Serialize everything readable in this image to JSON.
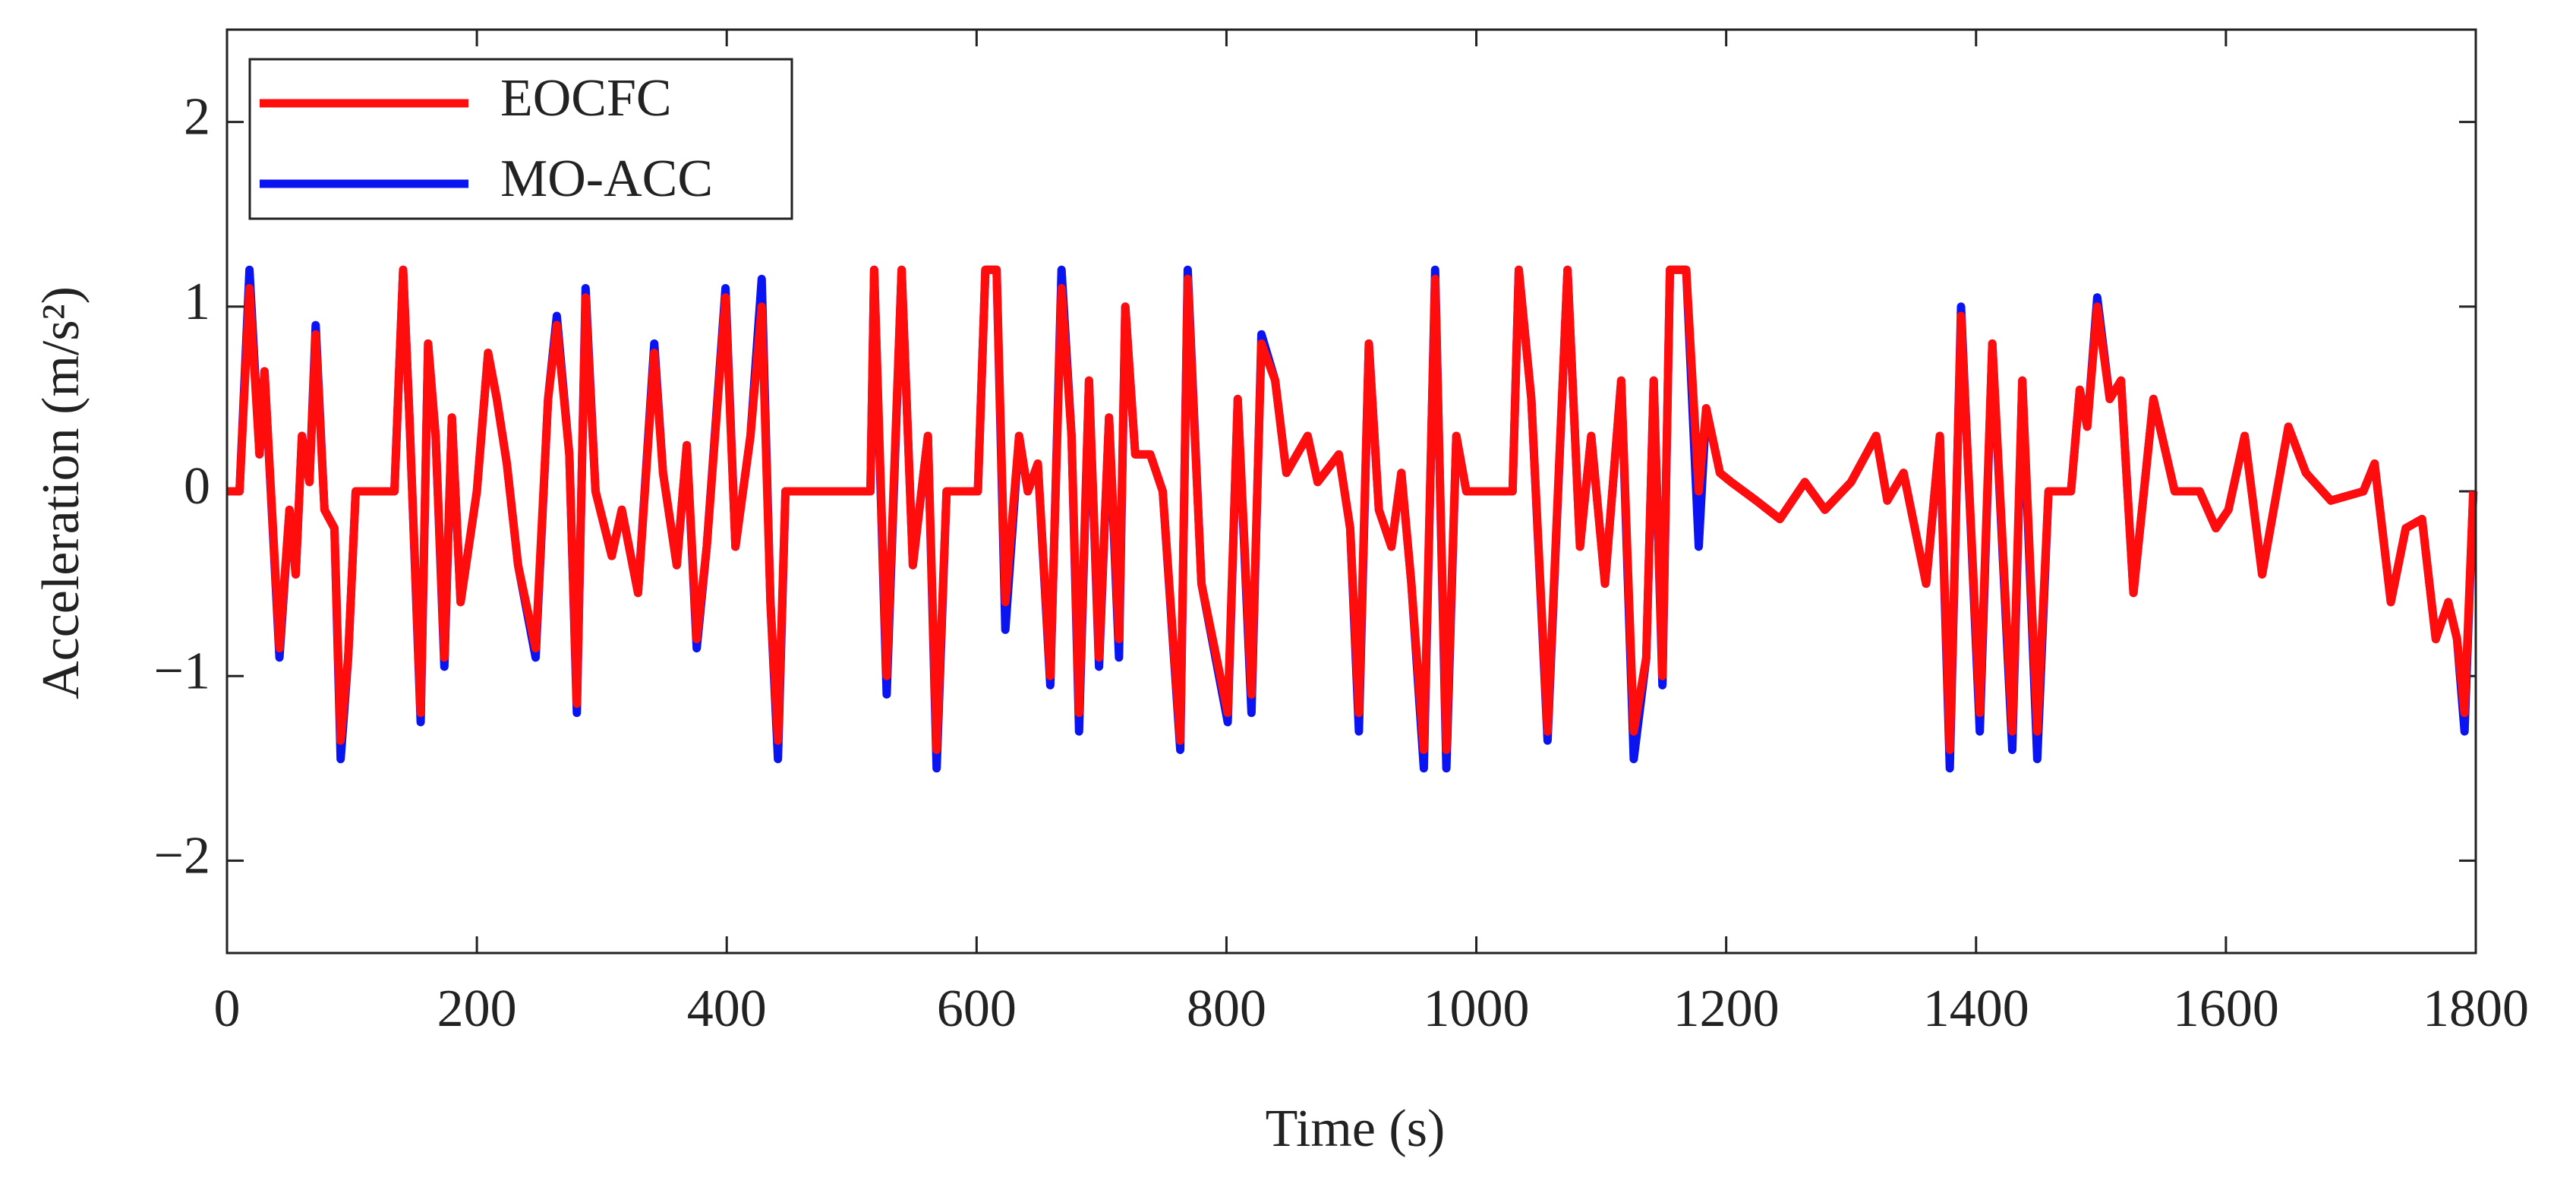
{
  "chart_data": {
    "type": "line",
    "xlabel": "Time (s)",
    "ylabel": "Acceleration (m/s²)",
    "xlim": [
      0,
      1800
    ],
    "xticks": [
      0,
      200,
      400,
      600,
      800,
      1000,
      1200,
      1400,
      1600,
      1800
    ],
    "ylim": [
      -2.5,
      2.5
    ],
    "yticks": [
      {
        "value": -2,
        "label": "−2"
      },
      {
        "value": -1,
        "label": "−1"
      },
      0,
      1,
      2
    ],
    "grid": false,
    "legend": "upper left",
    "x": [
      0,
      10,
      18,
      26,
      30,
      42,
      50,
      55,
      60,
      66,
      71,
      78,
      86,
      91,
      97,
      103,
      134,
      141,
      146,
      155,
      161,
      167,
      174,
      180,
      187,
      200,
      209,
      216,
      224,
      233,
      247,
      257,
      264,
      274,
      280,
      287,
      295,
      308,
      316,
      329,
      342,
      349,
      360,
      368,
      376,
      384,
      399,
      407,
      419,
      428,
      435,
      441,
      447,
      515,
      518,
      528,
      540,
      549,
      561,
      568,
      576,
      601,
      607,
      616,
      623,
      634,
      641,
      649,
      659,
      668,
      676,
      682,
      690,
      698,
      706,
      714,
      719,
      727,
      739,
      749,
      763,
      769,
      780,
      801,
      809,
      820,
      828,
      839,
      848,
      865,
      873,
      890,
      899,
      906,
      914,
      922,
      932,
      940,
      948,
      958,
      967,
      976,
      984,
      992,
      1029,
      1034,
      1044,
      1057,
      1073,
      1083,
      1092,
      1103,
      1116,
      1126,
      1136,
      1142,
      1149,
      1155,
      1168,
      1178,
      1184,
      1195,
      1204,
      1224,
      1243,
      1263,
      1279,
      1300,
      1320,
      1329,
      1342,
      1360,
      1371,
      1379,
      1388,
      1403,
      1413,
      1429,
      1437,
      1449,
      1458,
      1476,
      1483,
      1489,
      1497,
      1507,
      1516,
      1526,
      1542,
      1559,
      1579,
      1592,
      1602,
      1615,
      1629,
      1650,
      1664,
      1684,
      1710,
      1719,
      1732,
      1744,
      1757,
      1768,
      1778,
      1785,
      1791,
      1798
    ],
    "series": [
      {
        "name": "MO-ACC",
        "color": "#0a14f0",
        "values": [
          0,
          0,
          1.2,
          0.2,
          0.65,
          -0.9,
          -0.1,
          -0.45,
          0.3,
          0.05,
          0.9,
          -0.1,
          -0.2,
          -1.45,
          -0.9,
          0,
          0,
          1.2,
          0.4,
          -1.25,
          0.8,
          0.3,
          -0.95,
          0.4,
          -0.6,
          0,
          0.75,
          0.5,
          0.15,
          -0.4,
          -0.9,
          0.5,
          0.95,
          0.2,
          -1.2,
          1.1,
          0,
          -0.35,
          -0.1,
          -0.55,
          0.8,
          0.1,
          -0.4,
          0.25,
          -0.85,
          -0.3,
          1.1,
          -0.3,
          0.3,
          1.15,
          -0.6,
          -1.45,
          0,
          0,
          1.2,
          -1.1,
          1.2,
          -0.4,
          0.3,
          -1.5,
          0,
          0,
          1.2,
          1.2,
          -0.75,
          0.3,
          0,
          0.15,
          -1.05,
          1.2,
          0.3,
          -1.3,
          0.6,
          -0.95,
          0.4,
          -0.9,
          1.0,
          0.2,
          0.2,
          0,
          -1.4,
          1.2,
          -0.5,
          -1.25,
          0.5,
          -1.2,
          0.85,
          0.6,
          0.1,
          0.3,
          0.05,
          0.2,
          -0.2,
          -1.3,
          0.8,
          -0.1,
          -0.3,
          0.1,
          -0.5,
          -1.5,
          1.2,
          -1.5,
          0.3,
          0,
          0,
          1.2,
          0.5,
          -1.35,
          1.2,
          -0.3,
          0.3,
          -0.5,
          0.6,
          -1.45,
          -0.9,
          0.6,
          -1.05,
          1.2,
          1.2,
          -0.3,
          0.45,
          0.1,
          0.05,
          -0.05,
          -0.15,
          0.05,
          -0.1,
          0.05,
          0.3,
          -0.05,
          0.1,
          -0.5,
          0.3,
          -1.5,
          1.0,
          -1.3,
          0.8,
          -1.4,
          0.6,
          -1.45,
          0,
          0,
          0.55,
          0.35,
          1.05,
          0.5,
          0.6,
          -0.55,
          0.5,
          0,
          0,
          -0.2,
          -0.1,
          0.3,
          -0.45,
          0.35,
          0.1,
          -0.05,
          0,
          0.15,
          -0.6,
          -0.2,
          -0.15,
          -0.8,
          -0.6,
          -0.8,
          -1.3,
          0
        ]
      },
      {
        "name": "EOCFC",
        "color": "#ff0d0d",
        "values": [
          0,
          0,
          1.1,
          0.2,
          0.65,
          -0.85,
          -0.1,
          -0.45,
          0.3,
          0.05,
          0.85,
          -0.1,
          -0.2,
          -1.35,
          -0.9,
          0,
          0,
          1.2,
          0.4,
          -1.2,
          0.8,
          0.3,
          -0.9,
          0.4,
          -0.6,
          0,
          0.75,
          0.5,
          0.15,
          -0.4,
          -0.85,
          0.5,
          0.9,
          0.2,
          -1.15,
          1.05,
          0,
          -0.35,
          -0.1,
          -0.55,
          0.75,
          0.1,
          -0.4,
          0.25,
          -0.8,
          -0.3,
          1.05,
          -0.3,
          0.3,
          1.0,
          -0.6,
          -1.35,
          0,
          0,
          1.2,
          -1.0,
          1.2,
          -0.4,
          0.3,
          -1.4,
          0,
          0,
          1.2,
          1.2,
          -0.6,
          0.3,
          0,
          0.15,
          -1.0,
          1.1,
          0.3,
          -1.2,
          0.6,
          -0.9,
          0.4,
          -0.8,
          1.0,
          0.2,
          0.2,
          0,
          -1.35,
          1.15,
          -0.5,
          -1.2,
          0.5,
          -1.1,
          0.8,
          0.6,
          0.1,
          0.3,
          0.05,
          0.2,
          -0.2,
          -1.2,
          0.8,
          -0.1,
          -0.3,
          0.1,
          -0.5,
          -1.4,
          1.15,
          -1.4,
          0.3,
          0,
          0,
          1.2,
          0.5,
          -1.3,
          1.2,
          -0.3,
          0.3,
          -0.5,
          0.6,
          -1.3,
          -0.9,
          0.6,
          -1.0,
          1.2,
          1.2,
          0,
          0.45,
          0.1,
          0.05,
          -0.05,
          -0.15,
          0.05,
          -0.1,
          0.05,
          0.3,
          -0.05,
          0.1,
          -0.5,
          0.3,
          -1.4,
          0.95,
          -1.2,
          0.8,
          -1.3,
          0.6,
          -1.3,
          0,
          0,
          0.55,
          0.35,
          1.0,
          0.5,
          0.6,
          -0.55,
          0.5,
          0,
          0,
          -0.2,
          -0.1,
          0.3,
          -0.45,
          0.35,
          0.1,
          -0.05,
          0,
          0.15,
          -0.6,
          -0.2,
          -0.15,
          -0.8,
          -0.6,
          -0.8,
          -1.2,
          0
        ]
      }
    ]
  }
}
